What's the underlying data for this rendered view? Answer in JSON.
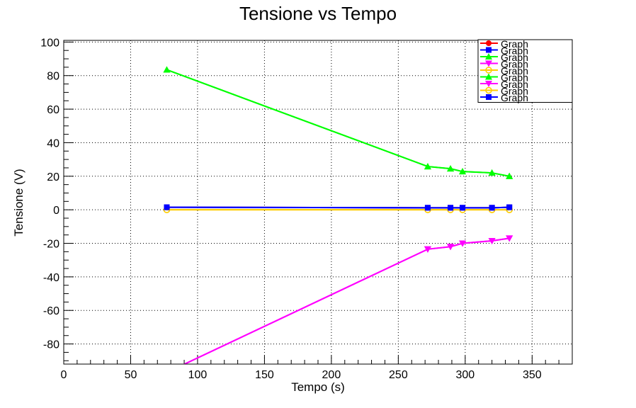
{
  "chart_data": {
    "type": "line",
    "title": "Tensione vs Tempo",
    "xlabel": "Tempo (s)",
    "ylabel": "Tensione (V)",
    "xlim": [
      0,
      380
    ],
    "ylim": [
      -92,
      101
    ],
    "xticks": [
      0,
      50,
      100,
      150,
      200,
      250,
      300,
      350
    ],
    "yticks": [
      -80,
      -60,
      -40,
      -20,
      0,
      20,
      40,
      60,
      80,
      100
    ],
    "grid": true,
    "legend_position": "top-right",
    "series": [
      {
        "name": "Graph",
        "color": "#ff0000",
        "marker": "circle",
        "x": [
          77,
          272,
          289,
          298,
          320,
          333
        ],
        "y": [
          1.5,
          1.2,
          1.2,
          1.2,
          1.2,
          1.5
        ]
      },
      {
        "name": "Graph",
        "color": "#0000ff",
        "marker": "square",
        "x": [
          77,
          272,
          289,
          298,
          320,
          333
        ],
        "y": [
          1.5,
          1.2,
          1.2,
          1.2,
          1.2,
          1.5
        ]
      },
      {
        "name": "Graph",
        "color": "#00ff00",
        "marker": "triangle-up",
        "x": [
          77,
          272,
          289,
          298,
          320,
          333
        ],
        "y": [
          83.5,
          25.8,
          24.5,
          22.8,
          22.0,
          20.0
        ]
      },
      {
        "name": "Graph",
        "color": "#ff00ff",
        "marker": "triangle-down",
        "x": [
          77,
          272,
          289,
          298,
          320,
          333
        ],
        "y": [
          -97,
          -23.5,
          -22.0,
          -20.0,
          -18.5,
          -17.0
        ]
      },
      {
        "name": "Graph",
        "color": "#ffcc00",
        "marker": "open-circle",
        "x": [
          77,
          272,
          289,
          298,
          320,
          333
        ],
        "y": [
          0,
          0,
          0,
          0,
          0,
          0
        ]
      },
      {
        "name": "Graph",
        "color": "#00ff00",
        "marker": "triangle-up",
        "x": [
          77,
          272,
          289,
          298,
          320,
          333
        ],
        "y": [
          83.5,
          25.8,
          24.5,
          22.8,
          22.0,
          20.0
        ]
      },
      {
        "name": "Graph",
        "color": "#ff00ff",
        "marker": "triangle-down",
        "x": [
          77,
          272,
          289,
          298,
          320,
          333
        ],
        "y": [
          -97,
          -23.5,
          -22.0,
          -20.0,
          -18.5,
          -17.0
        ]
      },
      {
        "name": "Graph",
        "color": "#ffcc00",
        "marker": "open-circle",
        "x": [
          77,
          272,
          289,
          298,
          320,
          333
        ],
        "y": [
          0,
          0,
          0,
          0,
          0,
          0
        ]
      },
      {
        "name": "Graph",
        "color": "#0000ff",
        "marker": "square",
        "x": [
          77,
          272,
          289,
          298,
          320,
          333
        ],
        "y": [
          1.5,
          1.2,
          1.2,
          1.2,
          1.2,
          1.5
        ]
      }
    ]
  }
}
